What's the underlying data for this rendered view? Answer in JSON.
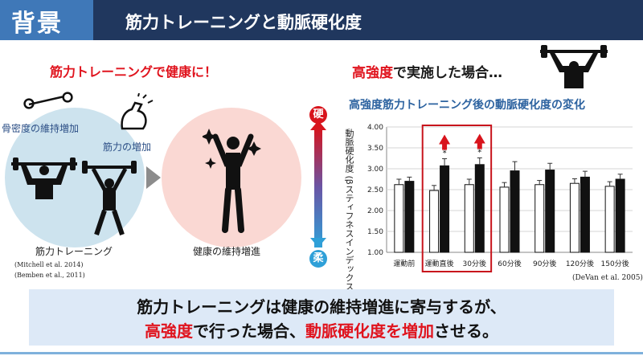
{
  "header": {
    "tab_label": "背景",
    "title": "筋力トレーニングと動脈硬化度"
  },
  "left": {
    "heading": "筋力トレーニングで健康に！",
    "label_bone": "骨密度の維持増加",
    "label_muscle": "筋力の増加",
    "label_training": "筋力トレーニング",
    "label_health": "健康の維持増進",
    "refs": [
      "(Mitchell et al. 2014)",
      "(Bemben et al., 2011)"
    ],
    "icons": [
      "bone-icon",
      "flexed-arm-icon",
      "weightlifter-icon",
      "barbell-lifter-icon",
      "celebrating-person-icon",
      "arrow-right-icon"
    ]
  },
  "gauge": {
    "top_label": "硬",
    "bottom_label": "柔",
    "top_color": "#d8141c",
    "bottom_color": "#2fa0d8"
  },
  "right": {
    "heading_hl": "高強度",
    "heading_rest": "で実施した場合…",
    "chart_title": "高強度筋力トレーニング後の動脈硬化度の変化",
    "citation": "(DeVan et al. 2005)"
  },
  "chart_data": {
    "type": "bar",
    "title": "高強度筋力トレーニング後の動脈硬化度の変化",
    "ylabel": "動脈硬化度 (βスティフネスインデックス) (U)",
    "ylim": [
      1.0,
      4.0
    ],
    "yticks": [
      "1.00",
      "1.50",
      "2.00",
      "2.50",
      "3.00",
      "3.50",
      "4.00"
    ],
    "categories": [
      "運動前",
      "運動直後",
      "30分後",
      "60分後",
      "90分後",
      "120分後",
      "150分後"
    ],
    "series": [
      {
        "values": [
          2.62,
          2.48,
          2.62,
          2.56,
          2.62,
          2.65,
          2.58
        ],
        "errors": [
          0.13,
          0.12,
          0.13,
          0.11,
          0.1,
          0.11,
          0.11
        ],
        "color": "#ffffff"
      },
      {
        "values": [
          2.7,
          3.07,
          3.1,
          2.95,
          2.97,
          2.8,
          2.75
        ],
        "errors": [
          0.1,
          0.17,
          0.16,
          0.22,
          0.16,
          0.14,
          0.12
        ],
        "color": "#111111"
      }
    ],
    "significance_marker": "*",
    "significant": [
      1,
      2
    ],
    "highlight_categories": [
      1,
      2
    ]
  },
  "bottom": {
    "line1": "筋力トレーニングは健康の維持増進に寄与するが、",
    "line2_a": "高強度",
    "line2_b": "で行った場合、",
    "line2_c": "動脈硬化度を増加",
    "line2_d": "させる。"
  }
}
